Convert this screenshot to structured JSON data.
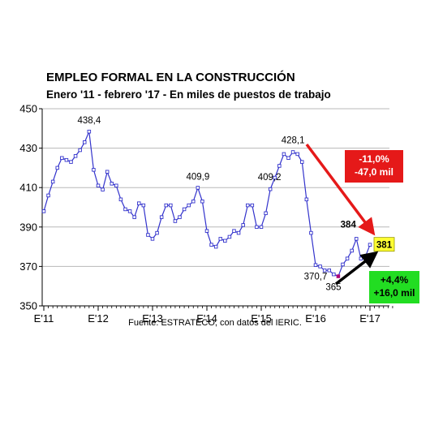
{
  "chart_data": {
    "type": "line",
    "title": "EMPLEO FORMAL EN LA CONSTRUCCIÓN",
    "subtitle": "Enero '11 - febrero '17 - En miles de puestos de trabajo",
    "source": "Fuente: ESTRATECO, con datos del IERIC.",
    "ylim": [
      350,
      450
    ],
    "yticks": [
      "350",
      "370",
      "390",
      "410",
      "430",
      "450"
    ],
    "xticks": [
      {
        "label": "E'11",
        "index": 0
      },
      {
        "label": "E'12",
        "index": 12
      },
      {
        "label": "E'13",
        "index": 24
      },
      {
        "label": "E'14",
        "index": 36
      },
      {
        "label": "E'15",
        "index": 48
      },
      {
        "label": "E'16",
        "index": 60
      },
      {
        "label": "E'17",
        "index": 72
      }
    ],
    "grid": "horizontal",
    "series": [
      {
        "color": "#3333cc",
        "values": [
          398,
          406,
          413,
          420,
          425,
          424,
          423,
          426,
          429,
          433,
          438.4,
          419,
          411,
          409,
          418,
          412,
          411,
          404,
          399,
          398,
          395,
          402,
          401,
          386,
          384,
          387,
          395,
          401,
          401,
          393,
          395,
          399,
          401,
          403,
          409.9,
          403,
          388,
          381,
          380,
          384,
          383,
          385,
          388,
          387,
          391,
          401,
          401,
          390,
          390,
          397,
          409.2,
          415,
          421,
          427,
          425,
          428,
          427,
          423,
          404,
          387,
          370.7,
          370,
          368,
          368,
          366,
          365,
          371,
          374,
          378,
          384,
          374,
          375,
          381
        ]
      }
    ],
    "data_labels": [
      {
        "index": 10,
        "text": "438,4"
      },
      {
        "index": 34,
        "text": "409,9"
      },
      {
        "index": 50,
        "text": "409,2"
      },
      {
        "index": 55,
        "text": "428,1"
      },
      {
        "index": 60,
        "text": "370,7"
      },
      {
        "index": 65,
        "text": "365"
      },
      {
        "index": 69,
        "text": "384"
      },
      {
        "index": 72,
        "text": "381"
      }
    ],
    "annotations": [
      {
        "lines": [
          "-11,0%",
          "-47,0 mil"
        ],
        "color": "#e51919",
        "text_color": "#ffffff"
      },
      {
        "lines": [
          "+4,4%",
          "+16,0 mil"
        ],
        "color": "#22dd22",
        "text_color": "#000000"
      }
    ],
    "arrow_colors": {
      "down": "#e51919",
      "up": "#000000"
    },
    "highlight_color": "#ffff33"
  }
}
